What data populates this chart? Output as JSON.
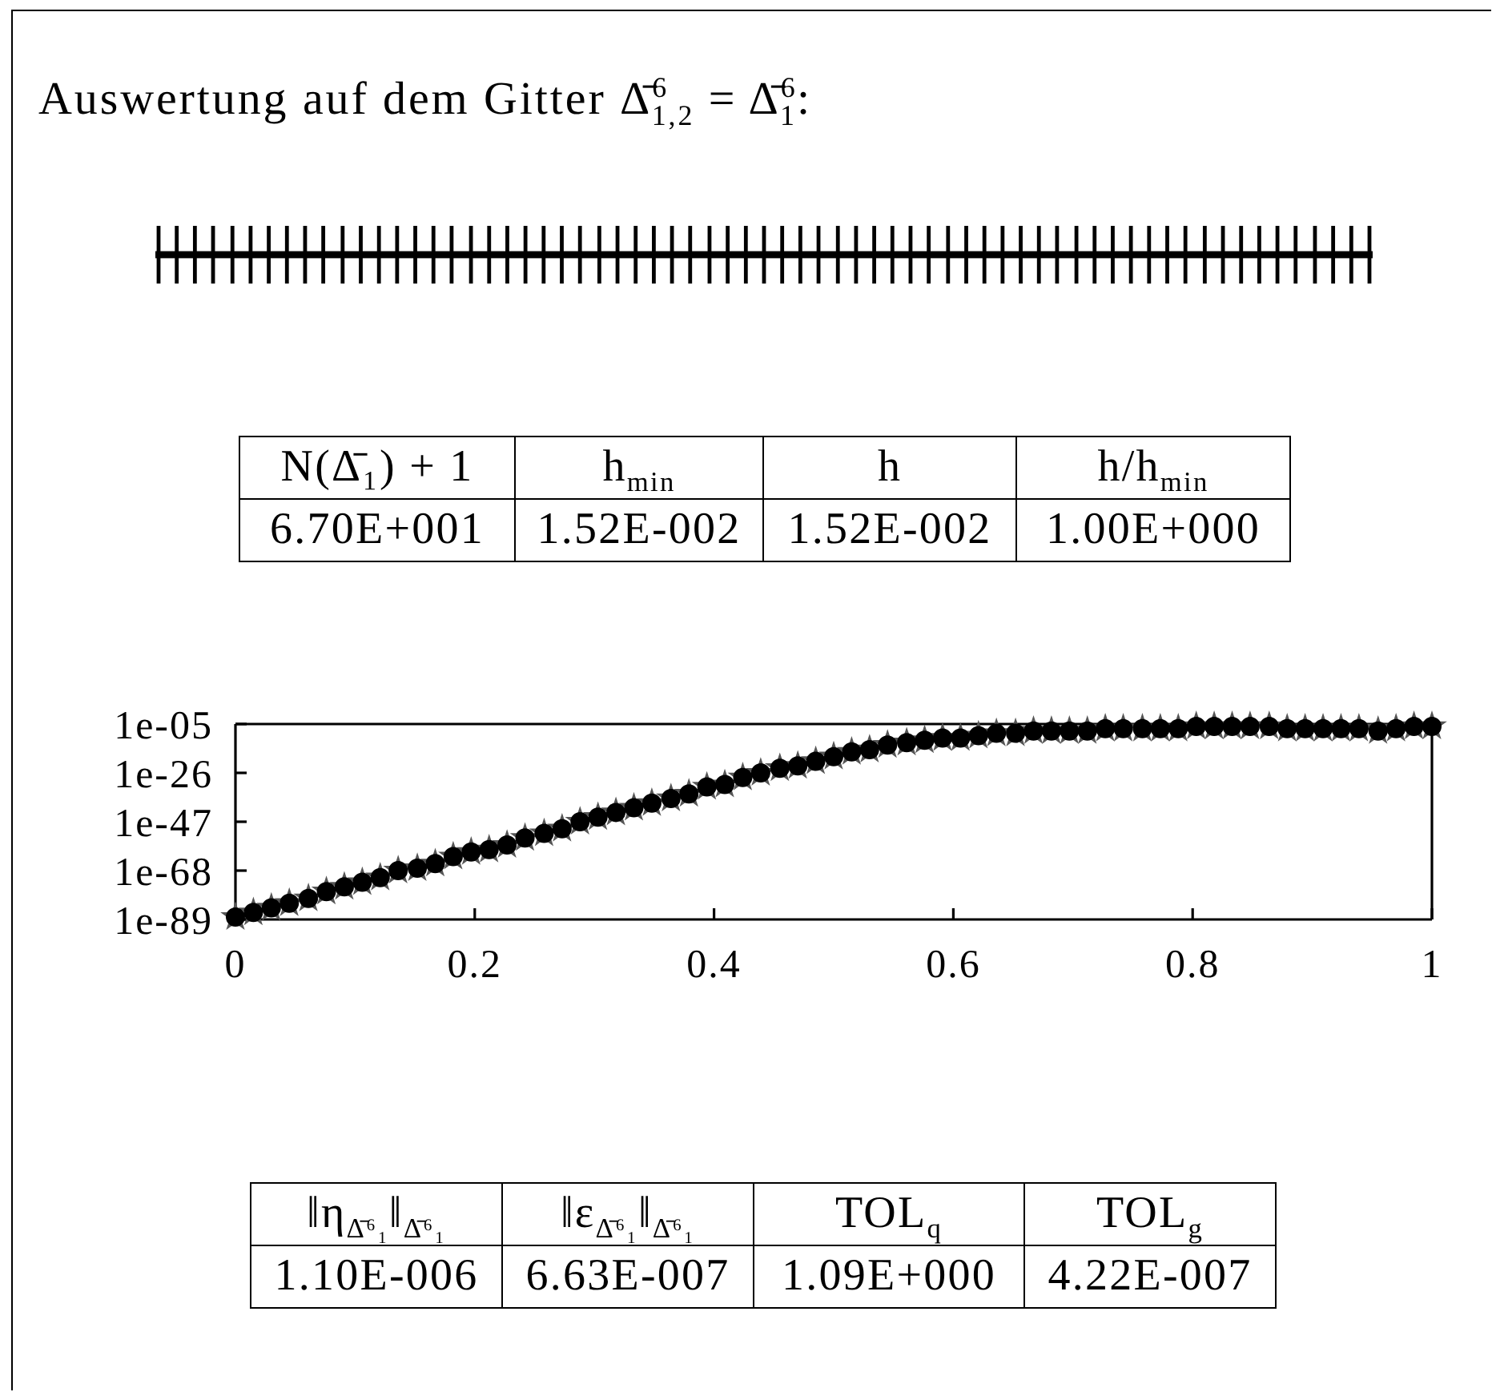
{
  "chart_data": [
    {
      "type": "other",
      "title": "Auswertung auf dem Gitter Δ̄$^{6}$$_{1,2}$ = Δ̄$^{6}$$_{1}$:",
      "annotations": [
        "N(Δ̄₁) + 1",
        "h$_{min}$",
        "h",
        "h/h$_{min}$",
        "6.70E+001",
        "1.52E-002",
        "1.52E-002",
        "1.00E+000"
      ]
    },
    {
      "type": "scatter",
      "xlim": [
        0,
        1
      ],
      "xticks": [
        0,
        0.2,
        0.4,
        0.6,
        0.8,
        1
      ],
      "ylim": [
        1e-89,
        1e-05
      ],
      "yticks": [
        {
          "value": 1e-89,
          "label": "1e-89"
        },
        {
          "value": 1e-68,
          "label": "1e-68"
        },
        {
          "value": 1e-47,
          "label": "1e-47"
        },
        {
          "value": 1e-26,
          "label": "1e-26"
        },
        {
          "value": 1e-05,
          "label": "1e-05"
        }
      ],
      "log": "y",
      "x": [
        0,
        0.015,
        0.03,
        0.045,
        0.061,
        0.076,
        0.091,
        0.106,
        0.121,
        0.136,
        0.152,
        0.167,
        0.182,
        0.197,
        0.212,
        0.227,
        0.242,
        0.258,
        0.273,
        0.288,
        0.303,
        0.318,
        0.333,
        0.348,
        0.364,
        0.379,
        0.394,
        0.409,
        0.424,
        0.439,
        0.455,
        0.47,
        0.485,
        0.5,
        0.515,
        0.53,
        0.545,
        0.561,
        0.576,
        0.591,
        0.606,
        0.621,
        0.636,
        0.652,
        0.667,
        0.682,
        0.697,
        0.712,
        0.727,
        0.742,
        0.758,
        0.773,
        0.788,
        0.803,
        0.818,
        0.833,
        0.848,
        0.864,
        0.879,
        0.894,
        0.909,
        0.924,
        0.939,
        0.955,
        0.97,
        0.985,
        1
      ],
      "series": [
        {
          "color": "#555555",
          "marker": "star",
          "values": [
            1e-88,
            1e-86,
            1e-84,
            1e-82,
            1e-80,
            1e-77,
            1e-75,
            1e-73,
            1e-71,
            1e-68,
            1e-67,
            1e-65,
            1e-62,
            1e-60,
            1e-59,
            1e-57,
            1e-54,
            1e-52,
            1e-50,
            1e-47,
            1e-45,
            1e-43,
            1e-41,
            1e-39,
            1e-37,
            1e-35,
            1e-32,
            1e-31,
            1e-28,
            1e-26,
            1e-24,
            1e-23,
            1e-21,
            1e-19,
            1e-17,
            1e-16,
            1e-14,
            1e-13,
            1e-12,
            1e-11,
            1e-11,
            1e-10,
            1e-09,
            1e-09,
            1e-08,
            1e-08,
            1e-08,
            1e-08,
            1e-07,
            1e-07,
            1e-07,
            1e-07,
            1e-07,
            1e-06,
            1e-06,
            1e-06,
            1e-06,
            1e-06,
            1e-07,
            1e-07,
            1e-07,
            1e-07,
            1e-07,
            1e-08,
            1e-07,
            1e-06,
            1e-06
          ]
        },
        {
          "color": "#000000",
          "marker": "circle",
          "values": [
            1e-88,
            1e-86,
            1e-84,
            1e-82,
            1e-80,
            1e-77,
            1e-75,
            1e-73,
            1e-71,
            1e-68,
            1e-67,
            1e-65,
            1e-62,
            1e-60,
            1e-59,
            1e-57,
            1e-54,
            1e-52,
            1e-50,
            1e-47,
            1e-45,
            1e-43,
            1e-41,
            1e-39,
            1e-37,
            1e-35,
            1e-32,
            1e-31,
            1e-28,
            1e-26,
            1e-24,
            1e-23,
            1e-21,
            1e-19,
            1e-17,
            1e-16,
            1e-14,
            1e-13,
            1e-12,
            1e-11,
            1e-11,
            1e-10,
            1e-09,
            1e-09,
            1e-08,
            1e-08,
            1e-08,
            1e-08,
            1e-07,
            1e-07,
            1e-07,
            1e-07,
            1e-07,
            1e-06,
            1e-06,
            1e-06,
            1e-06,
            1e-06,
            1e-07,
            1e-07,
            1e-07,
            1e-07,
            1e-07,
            1e-08,
            1e-07,
            1e-06,
            1e-06
          ]
        }
      ]
    },
    {
      "type": "other",
      "annotations": [
        "‖η$_{Δ̄⁶₁}$‖$_{Δ̄⁶₁}$",
        "‖ε$_{Δ̄⁶₁}$‖$_{Δ̄⁶₁}$",
        "TOL$_{q}$",
        "TOL$_{g}$",
        "1.10E-006",
        "6.63E-007",
        "1.09E+000",
        "4.22E-007"
      ]
    }
  ]
}
